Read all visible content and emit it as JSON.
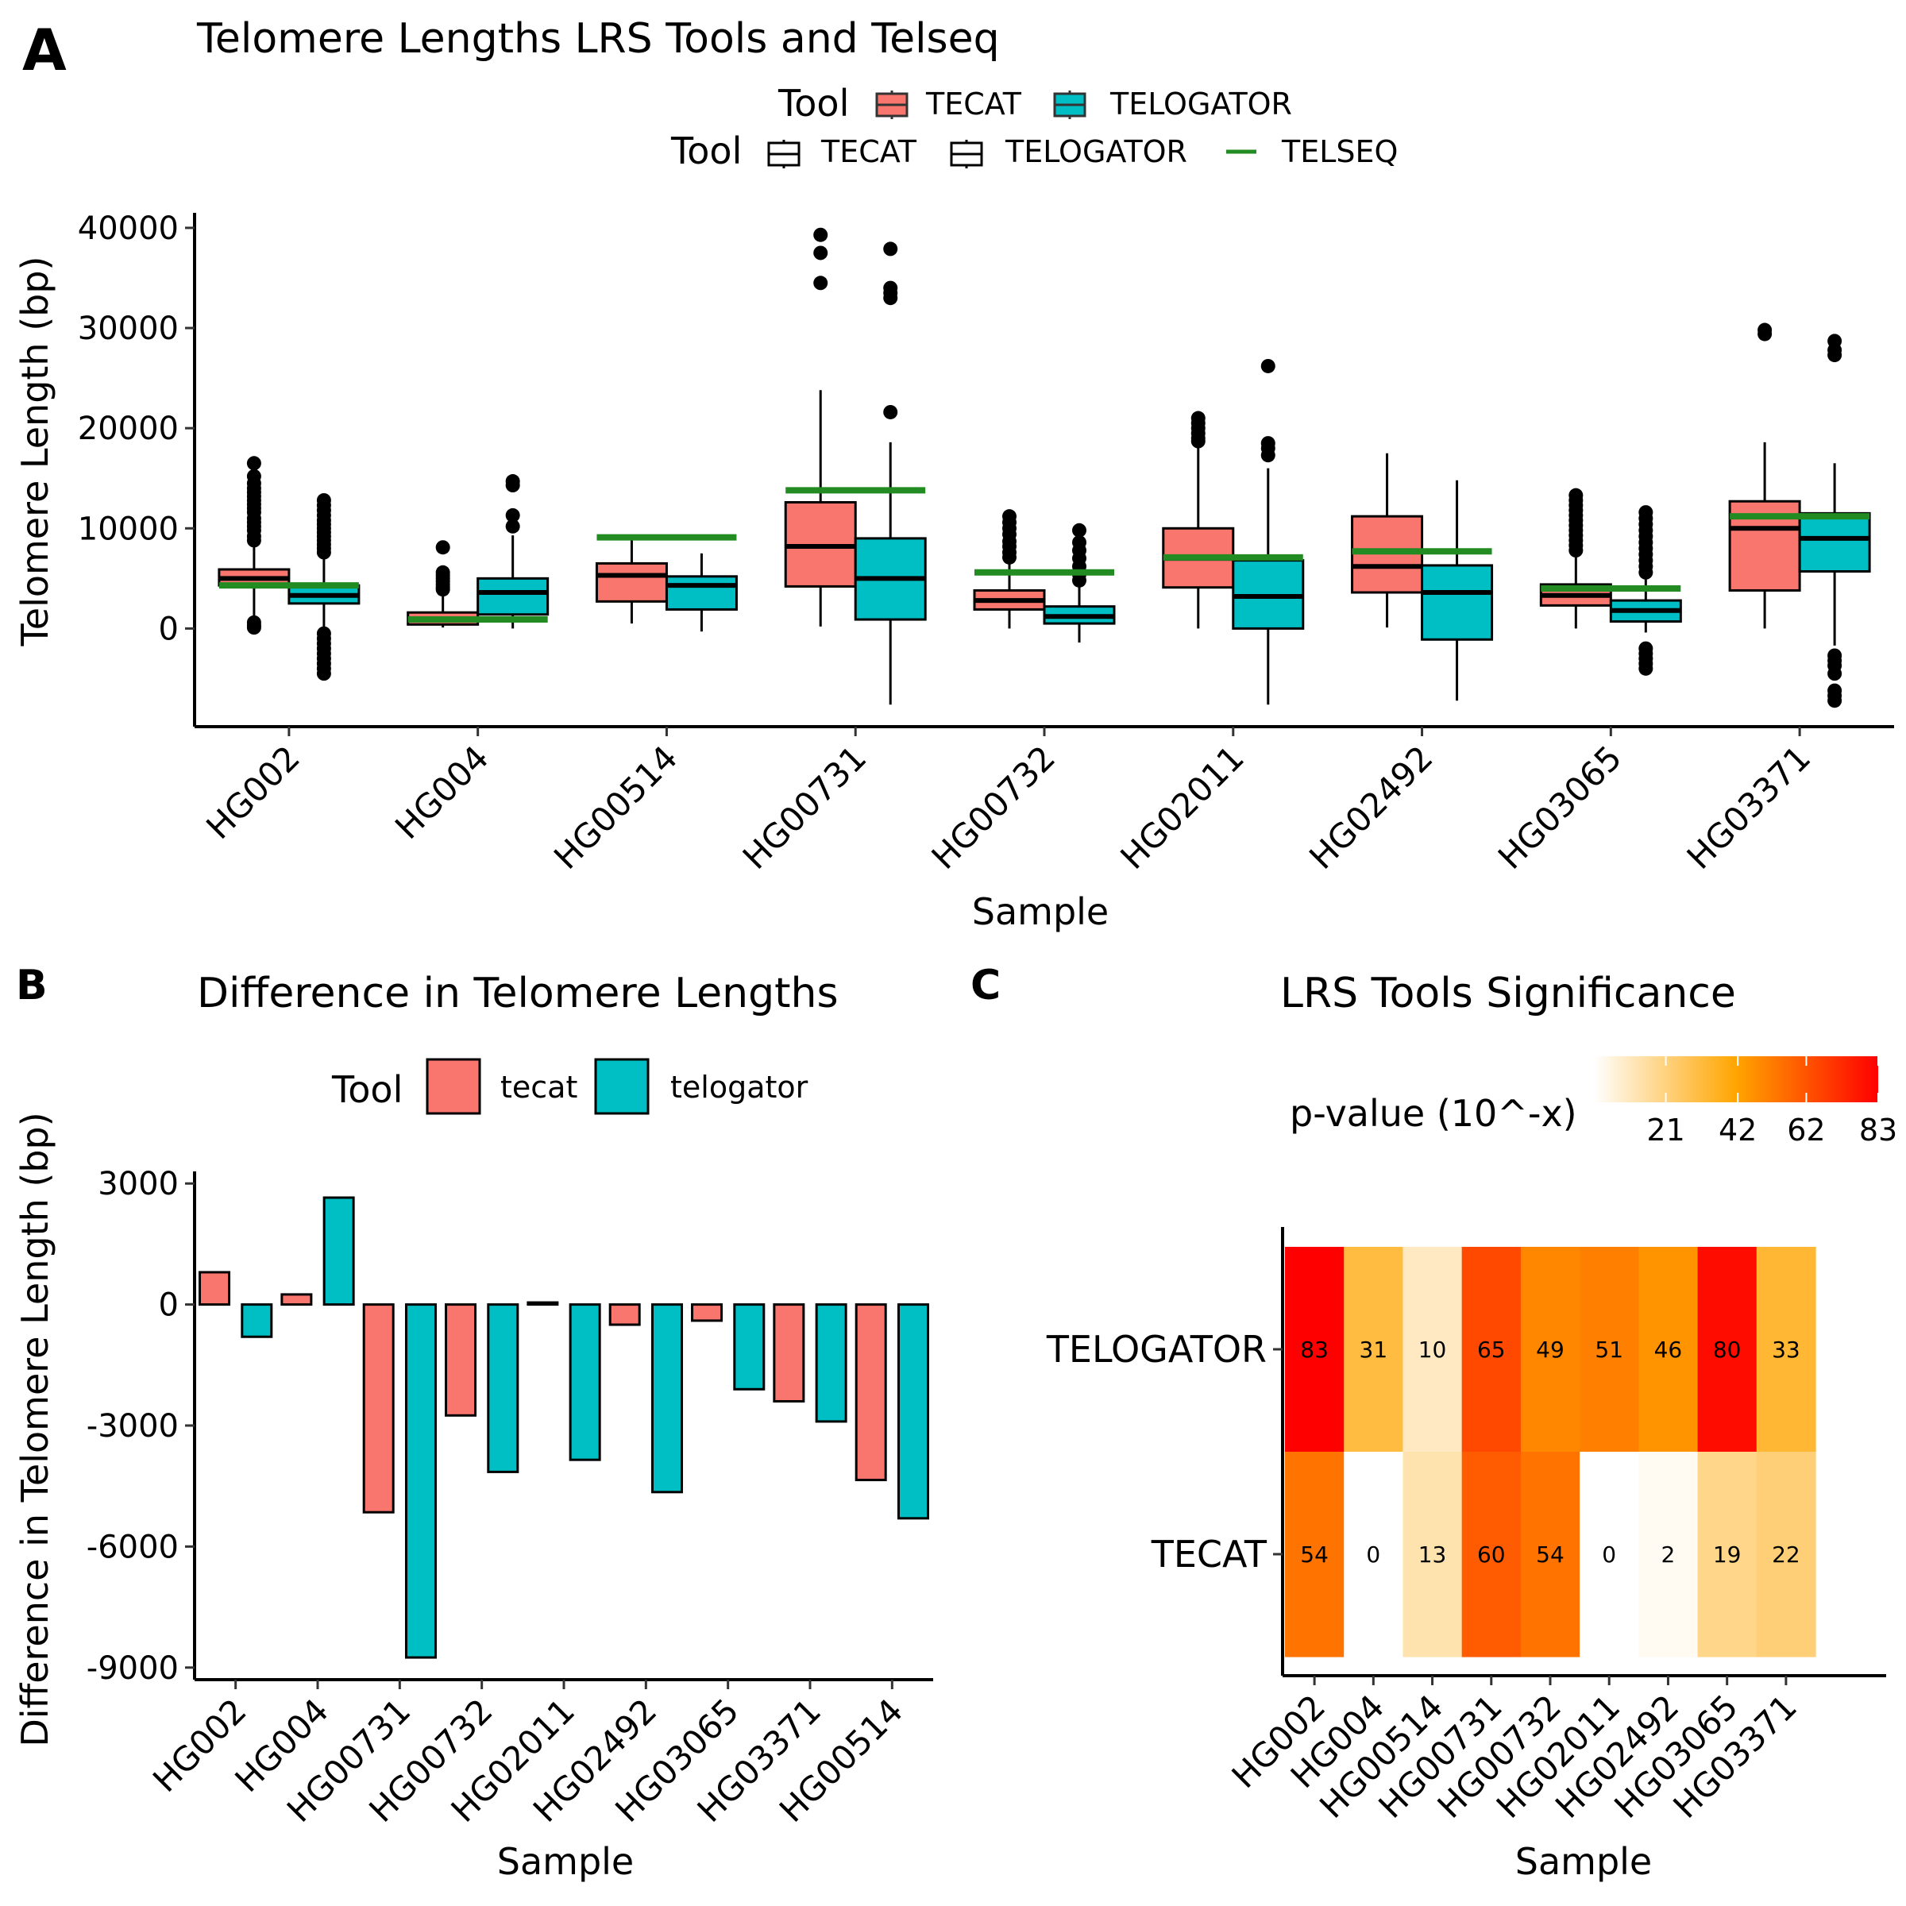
{
  "figure": {
    "tag_a": "A",
    "tag_b": "B",
    "tag_c": "C"
  },
  "chart_data": [
    {
      "type": "box",
      "panel": "A",
      "title": "Telomere Lengths LRS Tools and Telseq",
      "xlabel": "Sample",
      "ylabel": "Telomere Length (bp)",
      "ylim": [
        -9800,
        41500
      ],
      "yticks": [
        0,
        10000,
        20000,
        30000,
        40000
      ],
      "categories": [
        "HG002",
        "HG004",
        "HG00514",
        "HG00731",
        "HG00732",
        "HG02011",
        "HG02492",
        "HG03065",
        "HG03371"
      ],
      "legend_fill": {
        "title": "Tool",
        "items": [
          "TECAT",
          "TELOGATOR"
        ]
      },
      "legend_box": {
        "title": "Tool",
        "items": [
          "TECAT",
          "TELOGATOR",
          "TELSEQ"
        ]
      },
      "colors": {
        "tecat": "#F8766D",
        "telogator": "#00BFC4",
        "telseq": "#228B22"
      },
      "series": [
        {
          "name": "TECAT",
          "boxes": [
            {
              "whisker_low": 200,
              "q1": 4300,
              "median": 5000,
              "q3": 5900,
              "whisker_high": 8200,
              "outliers": [
                16500,
                15200,
                14500,
                14000,
                13600,
                13200,
                12800,
                12400,
                12000,
                11600,
                11000,
                10600,
                10200,
                9800,
                9200,
                8800,
                600,
                300,
                100
              ]
            },
            {
              "whisker_low": 100,
              "q1": 400,
              "median": 900,
              "q3": 1600,
              "whisker_high": 3500,
              "outliers": [
                8100,
                5600,
                5300,
                5000,
                4700,
                4400,
                4100,
                3900
              ]
            },
            {
              "whisker_low": 500,
              "q1": 2700,
              "median": 5300,
              "q3": 6500,
              "whisker_high": 8800,
              "outliers": []
            },
            {
              "whisker_low": 200,
              "q1": 4200,
              "median": 8200,
              "q3": 12600,
              "whisker_high": 23800,
              "outliers": [
                39300,
                37500,
                34500
              ]
            },
            {
              "whisker_low": 0,
              "q1": 1900,
              "median": 2800,
              "q3": 3800,
              "whisker_high": 6700,
              "outliers": [
                11200,
                10600,
                10000,
                9400,
                8700,
                8200,
                7600,
                7100
              ]
            },
            {
              "whisker_low": 0,
              "q1": 4100,
              "median": 7000,
              "q3": 10000,
              "whisker_high": 18200,
              "outliers": [
                21000,
                20500,
                20000,
                19500,
                19000,
                18700
              ]
            },
            {
              "whisker_low": 100,
              "q1": 3600,
              "median": 6200,
              "q3": 11200,
              "whisker_high": 17500,
              "outliers": []
            },
            {
              "whisker_low": 0,
              "q1": 2300,
              "median": 3300,
              "q3": 4400,
              "whisker_high": 7500,
              "outliers": [
                13300,
                12800,
                12300,
                11800,
                11300,
                10800,
                10300,
                9800,
                9300,
                8800,
                8300,
                7800
              ]
            },
            {
              "whisker_low": 0,
              "q1": 3800,
              "median": 10000,
              "q3": 12700,
              "whisker_high": 18600,
              "outliers": [
                29800,
                29400
              ]
            }
          ]
        },
        {
          "name": "TELOGATOR",
          "boxes": [
            {
              "whisker_low": 0,
              "q1": 2500,
              "median": 3300,
              "q3": 4300,
              "whisker_high": 7300,
              "outliers": [
                12800,
                12300,
                11800,
                11300,
                10800,
                10400,
                10000,
                9600,
                9200,
                8800,
                8400,
                8000,
                7600,
                -500,
                -1000,
                -1500,
                -2000,
                -2500,
                -3000,
                -3500,
                -4000,
                -4500
              ]
            },
            {
              "whisker_low": 0,
              "q1": 1400,
              "median": 3600,
              "q3": 5000,
              "whisker_high": 9300,
              "outliers": [
                14700,
                14300,
                11300,
                10200
              ]
            },
            {
              "whisker_low": -300,
              "q1": 1900,
              "median": 4300,
              "q3": 5200,
              "whisker_high": 7500,
              "outliers": []
            },
            {
              "whisker_low": -7600,
              "q1": 900,
              "median": 5000,
              "q3": 9000,
              "whisker_high": 18600,
              "outliers": [
                37900,
                34000,
                33500,
                33000,
                21600
              ]
            },
            {
              "whisker_low": -1400,
              "q1": 500,
              "median": 1200,
              "q3": 2200,
              "whisker_high": 4200,
              "outliers": [
                9800,
                8600,
                7800,
                7000,
                6200,
                5400,
                4800
              ]
            },
            {
              "whisker_low": -7600,
              "q1": 0,
              "median": 3200,
              "q3": 6800,
              "whisker_high": 16000,
              "outliers": [
                26200,
                18500,
                18000,
                17300
              ]
            },
            {
              "whisker_low": -7200,
              "q1": -1100,
              "median": 3600,
              "q3": 6300,
              "whisker_high": 14800,
              "outliers": []
            },
            {
              "whisker_low": -400,
              "q1": 700,
              "median": 1800,
              "q3": 2800,
              "whisker_high": 4900,
              "outliers": [
                11600,
                11000,
                10400,
                9800,
                9200,
                8600,
                8000,
                7400,
                6800,
                6200,
                5600,
                -2000,
                -2500,
                -3000,
                -3500,
                -4000
              ]
            },
            {
              "whisker_low": -1700,
              "q1": 5700,
              "median": 9000,
              "q3": 11500,
              "whisker_high": 16500,
              "outliers": [
                28700,
                27800,
                27300,
                -2700,
                -3200,
                -3700,
                -4500,
                -6200,
                -6700,
                -7200
              ]
            }
          ]
        },
        {
          "name": "TELSEQ",
          "values": [
            4300,
            900,
            9100,
            13800,
            5600,
            7100,
            7700,
            4000,
            11200
          ]
        }
      ]
    },
    {
      "type": "bar",
      "panel": "B",
      "title": "Difference in Telomere Lengths",
      "xlabel": "Sample",
      "ylabel": "Difference in Telomere Length (bp)",
      "ylim": [
        -9300,
        3300
      ],
      "yticks": [
        3000,
        0,
        -3000,
        -6000,
        -9000
      ],
      "categories": [
        "HG002",
        "HG004",
        "HG00731",
        "HG00732",
        "HG02011",
        "HG02492",
        "HG03065",
        "HG03371",
        "HG00514"
      ],
      "legend": {
        "title": "Tool",
        "items": [
          "tecat",
          "telogator"
        ]
      },
      "series": [
        {
          "name": "tecat",
          "values": [
            800,
            250,
            -5150,
            -2750,
            50,
            -500,
            -400,
            -2400,
            -4350
          ]
        },
        {
          "name": "telogator",
          "values": [
            -800,
            2650,
            -8750,
            -4150,
            -3850,
            -4650,
            -2100,
            -2900,
            -5300
          ]
        }
      ]
    },
    {
      "type": "heatmap",
      "panel": "C",
      "title": "LRS Tools Significance",
      "xlabel": "Sample",
      "legend": {
        "title": "p-value (10^-x)",
        "ticks": [
          21,
          42,
          62,
          83
        ],
        "min": 0,
        "max": 83,
        "gradient": [
          "#FFFFFF",
          "#FFA500",
          "#FF0000"
        ]
      },
      "x": [
        "HG002",
        "HG004",
        "HG00514",
        "HG00731",
        "HG00732",
        "HG02011",
        "HG02492",
        "HG03065",
        "HG03371"
      ],
      "y": [
        "TELOGATOR",
        "TECAT"
      ],
      "values": [
        [
          83,
          31,
          10,
          65,
          49,
          51,
          46,
          80,
          33
        ],
        [
          54,
          0,
          13,
          60,
          54,
          0,
          2,
          19,
          22
        ]
      ]
    }
  ]
}
